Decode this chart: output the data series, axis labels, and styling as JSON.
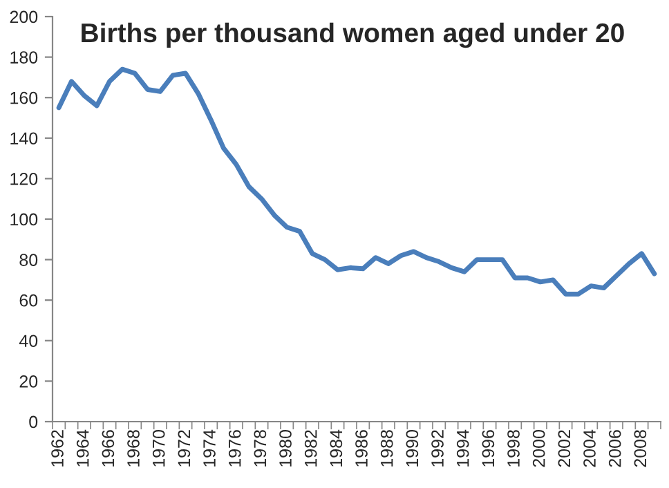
{
  "chart_data": {
    "type": "line",
    "title": "Births per thousand women aged under 20",
    "categories": [
      "1962",
      null,
      "1964",
      null,
      "1966",
      null,
      "1968",
      null,
      "1970",
      null,
      "1972",
      null,
      "1974",
      null,
      "1976",
      null,
      "1978",
      null,
      "1980",
      null,
      "1982",
      null,
      "1984",
      null,
      "1986",
      null,
      "1988",
      null,
      "1990",
      null,
      "1992",
      null,
      "1994",
      null,
      "1996",
      null,
      "1998",
      null,
      "2000",
      null,
      "2002",
      null,
      "2004",
      null,
      "2006",
      null,
      "2008",
      null
    ],
    "series": [
      {
        "color": "#4a7ebb",
        "values": [
          155,
          168,
          161,
          156,
          168,
          174,
          172,
          164,
          163,
          171,
          172,
          162,
          149,
          135,
          127,
          116,
          110,
          102,
          96,
          94,
          83,
          80,
          75,
          76,
          75.5,
          81,
          78,
          82,
          84,
          81,
          79,
          76,
          74,
          80,
          80,
          80,
          71,
          71,
          69,
          70,
          63,
          63,
          67,
          66,
          72,
          78,
          83,
          73
        ]
      }
    ],
    "ylim": [
      0,
      200
    ],
    "yticks": [
      0,
      20,
      40,
      60,
      80,
      100,
      120,
      140,
      160,
      180,
      200
    ],
    "grid": false,
    "legend": false,
    "marker": "none",
    "line_style": "solid"
  }
}
